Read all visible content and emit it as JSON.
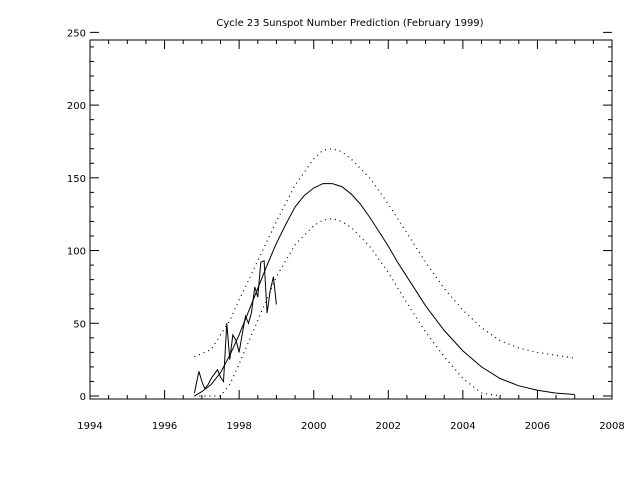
{
  "chart_data": {
    "type": "line",
    "title": "Cycle 23 Sunspot Number Prediction (February 1999)",
    "xlabel": "",
    "ylabel": "",
    "xlim": [
      1994,
      2008
    ],
    "ylim": [
      0,
      255
    ],
    "xticks": [
      1994,
      1996,
      1998,
      2000,
      2002,
      2004,
      2006,
      2008
    ],
    "yticks": [
      0,
      50,
      100,
      150,
      200,
      250
    ],
    "grid": false,
    "legend": "none",
    "colors": {
      "line": "#000000",
      "background": "#ffffff"
    },
    "series": [
      {
        "style": "solid",
        "x": [
          1996.8,
          1997.0,
          1997.25,
          1997.5,
          1997.75,
          1998.0,
          1998.25,
          1998.5,
          1998.75,
          1999.0,
          1999.25,
          1999.5,
          1999.75,
          2000.0,
          2000.25,
          2000.5,
          2000.75,
          2001.0,
          2001.25,
          2001.5,
          2001.75,
          2002.0,
          2002.25,
          2002.5,
          2002.75,
          2003.0,
          2003.5,
          2004.0,
          2004.5,
          2005.0,
          2005.5,
          2006.0,
          2006.5,
          2007.0
        ],
        "values": [
          0,
          3,
          8,
          16,
          28,
          42,
          58,
          74,
          90,
          105,
          118,
          130,
          138,
          143,
          146,
          146,
          144,
          139,
          132,
          123,
          113,
          103,
          92,
          82,
          72,
          62,
          45,
          31,
          20,
          12,
          7,
          4,
          2,
          1
        ]
      },
      {
        "style": "dotted",
        "x": [
          1996.8,
          1997.25,
          1997.5,
          1997.75,
          1998.0,
          1998.5,
          1999.0,
          1999.5,
          2000.0,
          2000.25,
          2000.5,
          2000.75,
          2001.0,
          2001.5,
          2002.0,
          2002.5,
          2003.0,
          2003.5,
          2004.0,
          2004.5,
          2005.0,
          2005.5,
          2006.0,
          2006.5,
          2007.0
        ],
        "values": [
          27,
          32,
          42,
          52,
          66,
          93,
          120,
          145,
          163,
          169,
          170,
          168,
          163,
          150,
          132,
          112,
          92,
          74,
          59,
          47,
          38,
          33,
          30,
          28,
          26
        ]
      },
      {
        "style": "dotted",
        "x": [
          1996.8,
          1997.25,
          1997.5,
          1997.75,
          1998.0,
          1998.5,
          1999.0,
          1999.5,
          2000.0,
          2000.25,
          2000.5,
          2000.75,
          2001.0,
          2001.5,
          2002.0,
          2002.5,
          2003.0,
          2003.5,
          2004.0,
          2004.5,
          2005.0
        ],
        "values": [
          0,
          0,
          0,
          8,
          22,
          52,
          82,
          104,
          117,
          121,
          122,
          120,
          116,
          103,
          85,
          64,
          44,
          27,
          12,
          2,
          0
        ]
      },
      {
        "style": "solid-observed",
        "x": [
          1996.8,
          1996.92,
          1997.0,
          1997.08,
          1997.17,
          1997.25,
          1997.33,
          1997.42,
          1997.5,
          1997.58,
          1997.67,
          1997.75,
          1997.83,
          1997.92,
          1998.0,
          1998.08,
          1998.17,
          1998.25,
          1998.33,
          1998.42,
          1998.5,
          1998.58,
          1998.67,
          1998.75,
          1998.83,
          1998.92,
          1999.0
        ],
        "values": [
          2,
          17,
          10,
          5,
          8,
          12,
          15,
          18,
          13,
          10,
          50,
          25,
          42,
          38,
          30,
          42,
          55,
          50,
          57,
          75,
          68,
          92,
          93,
          57,
          72,
          82,
          63
        ]
      }
    ]
  }
}
